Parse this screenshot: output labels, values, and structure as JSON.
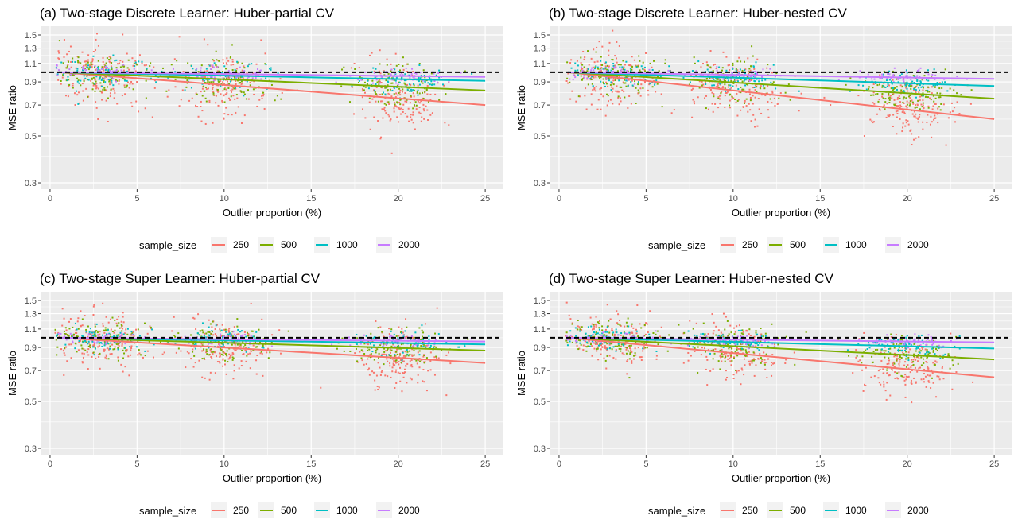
{
  "figure": {
    "legend_title": "sample_size",
    "reference_line": 1.0,
    "colors": {
      "250": "#F8766D",
      "500": "#7CAE00",
      "1000": "#00BFC4",
      "2000": "#C77CFF",
      "panel_bg": "#EBEBEB",
      "grid": "#FFFFFF",
      "reference": "#000000"
    }
  },
  "chart_data": [
    {
      "type": "scatter",
      "title": "(a) Two-stage Discrete Learner: Huber-partial CV",
      "xlabel": "Outlier proportion (%)",
      "ylabel": "MSE ratio",
      "xlim": [
        -0.5,
        26
      ],
      "ylim": [
        0.28,
        1.65
      ],
      "yscale": "log",
      "xticks": [
        0,
        5,
        10,
        15,
        20,
        25
      ],
      "yticks": [
        0.3,
        0.5,
        0.7,
        0.9,
        1.1,
        1.3,
        1.5
      ],
      "legend": [
        "250",
        "500",
        "1000",
        "2000"
      ],
      "clusters": [
        3,
        10,
        20
      ],
      "series": [
        {
          "name": "250",
          "trend_x": [
            0.5,
            25
          ],
          "trend_y": [
            1.0,
            0.7
          ],
          "spread": 0.33
        },
        {
          "name": "500",
          "trend_x": [
            0.5,
            25
          ],
          "trend_y": [
            1.0,
            0.82
          ],
          "spread": 0.22
        },
        {
          "name": "1000",
          "trend_x": [
            0.5,
            25
          ],
          "trend_y": [
            1.0,
            0.91
          ],
          "spread": 0.14
        },
        {
          "name": "2000",
          "trend_x": [
            0.5,
            25
          ],
          "trend_y": [
            1.0,
            0.95
          ],
          "spread": 0.07
        }
      ]
    },
    {
      "type": "scatter",
      "title": "(b) Two-stage Discrete Learner: Huber-nested CV",
      "xlabel": "Outlier proportion (%)",
      "ylabel": "MSE ratio",
      "xlim": [
        -0.5,
        26
      ],
      "ylim": [
        0.28,
        1.65
      ],
      "yscale": "log",
      "xticks": [
        0,
        5,
        10,
        15,
        20,
        25
      ],
      "yticks": [
        0.3,
        0.5,
        0.7,
        0.9,
        1.1,
        1.3,
        1.5
      ],
      "legend": [
        "250",
        "500",
        "1000",
        "2000"
      ],
      "clusters": [
        3,
        10,
        20
      ],
      "series": [
        {
          "name": "250",
          "trend_x": [
            0.5,
            25
          ],
          "trend_y": [
            1.0,
            0.6
          ],
          "spread": 0.3
        },
        {
          "name": "500",
          "trend_x": [
            0.5,
            25
          ],
          "trend_y": [
            1.0,
            0.75
          ],
          "spread": 0.2
        },
        {
          "name": "1000",
          "trend_x": [
            0.5,
            25
          ],
          "trend_y": [
            1.0,
            0.86
          ],
          "spread": 0.13
        },
        {
          "name": "2000",
          "trend_x": [
            0.5,
            25
          ],
          "trend_y": [
            1.0,
            0.93
          ],
          "spread": 0.07
        }
      ]
    },
    {
      "type": "scatter",
      "title": "(c) Two-stage Super Learner: Huber-partial CV",
      "xlabel": "Outlier proportion (%)",
      "ylabel": "MSE ratio",
      "xlim": [
        -0.5,
        26
      ],
      "ylim": [
        0.28,
        1.65
      ],
      "yscale": "log",
      "xticks": [
        0,
        5,
        10,
        15,
        20,
        25
      ],
      "yticks": [
        0.3,
        0.5,
        0.7,
        0.9,
        1.1,
        1.3,
        1.5
      ],
      "legend": [
        "250",
        "500",
        "1000",
        "2000"
      ],
      "clusters": [
        3,
        10,
        20
      ],
      "series": [
        {
          "name": "250",
          "trend_x": [
            0.5,
            25
          ],
          "trend_y": [
            1.0,
            0.76
          ],
          "spread": 0.28
        },
        {
          "name": "500",
          "trend_x": [
            0.5,
            25
          ],
          "trend_y": [
            1.0,
            0.87
          ],
          "spread": 0.19
        },
        {
          "name": "1000",
          "trend_x": [
            0.5,
            25
          ],
          "trend_y": [
            1.0,
            0.93
          ],
          "spread": 0.12
        },
        {
          "name": "2000",
          "trend_x": [
            0.5,
            25
          ],
          "trend_y": [
            1.0,
            0.96
          ],
          "spread": 0.06
        }
      ]
    },
    {
      "type": "scatter",
      "title": "(d) Two-stage Super Learner: Huber-nested CV",
      "xlabel": "Outlier proportion (%)",
      "ylabel": "MSE ratio",
      "xlim": [
        -0.5,
        26
      ],
      "ylim": [
        0.28,
        1.65
      ],
      "yscale": "log",
      "xticks": [
        0,
        5,
        10,
        15,
        20,
        25
      ],
      "yticks": [
        0.3,
        0.5,
        0.7,
        0.9,
        1.1,
        1.3,
        1.5
      ],
      "legend": [
        "250",
        "500",
        "1000",
        "2000"
      ],
      "clusters": [
        3,
        10,
        20
      ],
      "series": [
        {
          "name": "250",
          "trend_x": [
            0.5,
            25
          ],
          "trend_y": [
            1.0,
            0.65
          ],
          "spread": 0.26
        },
        {
          "name": "500",
          "trend_x": [
            0.5,
            25
          ],
          "trend_y": [
            1.0,
            0.79
          ],
          "spread": 0.18
        },
        {
          "name": "1000",
          "trend_x": [
            0.5,
            25
          ],
          "trend_y": [
            1.0,
            0.89
          ],
          "spread": 0.11
        },
        {
          "name": "2000",
          "trend_x": [
            0.5,
            25
          ],
          "trend_y": [
            1.0,
            0.95
          ],
          "spread": 0.06
        }
      ]
    }
  ]
}
